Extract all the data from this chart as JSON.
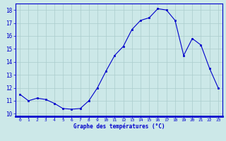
{
  "hours": [
    0,
    1,
    2,
    3,
    4,
    5,
    6,
    7,
    8,
    9,
    10,
    11,
    12,
    13,
    14,
    15,
    16,
    17,
    18,
    19,
    20,
    21,
    22,
    23
  ],
  "temperatures": [
    11.5,
    11.0,
    11.2,
    11.1,
    10.8,
    10.4,
    10.35,
    10.4,
    11.0,
    12.0,
    13.3,
    14.5,
    15.2,
    16.5,
    17.2,
    17.4,
    18.1,
    18.0,
    17.2,
    14.5,
    15.8,
    15.3,
    13.5,
    12.0
  ],
  "line_color": "#0000cc",
  "marker_color": "#0000cc",
  "bg_color": "#cce8e8",
  "grid_color": "#aacccc",
  "axis_label_color": "#0000cc",
  "tick_label_color": "#0000cc",
  "border_color": "#8888aa",
  "xlabel": "Graphe des températures (°C)",
  "ylim": [
    9.8,
    18.5
  ],
  "xlim": [
    -0.5,
    23.5
  ],
  "yticks": [
    10,
    11,
    12,
    13,
    14,
    15,
    16,
    17,
    18
  ],
  "xticks": [
    0,
    1,
    2,
    3,
    4,
    5,
    6,
    7,
    8,
    9,
    10,
    11,
    12,
    13,
    14,
    15,
    16,
    17,
    18,
    19,
    20,
    21,
    22,
    23
  ]
}
